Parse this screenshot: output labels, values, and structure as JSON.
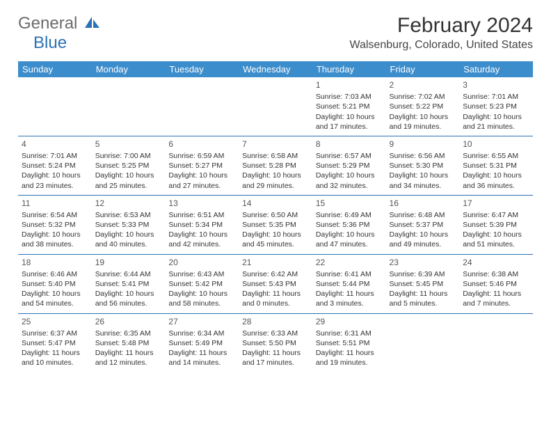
{
  "logo": {
    "general": "General",
    "blue": "Blue"
  },
  "title": "February 2024",
  "location": "Walsenburg, Colorado, United States",
  "colors": {
    "header_bg": "#3c8dcc",
    "header_text": "#ffffff",
    "row_border": "#2a72b5",
    "daynum_color": "#555555",
    "body_text": "#333333",
    "logo_gray": "#6b6b6b",
    "logo_blue": "#2a72b5"
  },
  "day_headers": [
    "Sunday",
    "Monday",
    "Tuesday",
    "Wednesday",
    "Thursday",
    "Friday",
    "Saturday"
  ],
  "layout": {
    "start_day_index": 4,
    "days_in_month": 29,
    "columns": 7,
    "rows": 5
  },
  "days": {
    "1": {
      "sunrise": "7:03 AM",
      "sunset": "5:21 PM",
      "daylight": "10 hours and 17 minutes."
    },
    "2": {
      "sunrise": "7:02 AM",
      "sunset": "5:22 PM",
      "daylight": "10 hours and 19 minutes."
    },
    "3": {
      "sunrise": "7:01 AM",
      "sunset": "5:23 PM",
      "daylight": "10 hours and 21 minutes."
    },
    "4": {
      "sunrise": "7:01 AM",
      "sunset": "5:24 PM",
      "daylight": "10 hours and 23 minutes."
    },
    "5": {
      "sunrise": "7:00 AM",
      "sunset": "5:25 PM",
      "daylight": "10 hours and 25 minutes."
    },
    "6": {
      "sunrise": "6:59 AM",
      "sunset": "5:27 PM",
      "daylight": "10 hours and 27 minutes."
    },
    "7": {
      "sunrise": "6:58 AM",
      "sunset": "5:28 PM",
      "daylight": "10 hours and 29 minutes."
    },
    "8": {
      "sunrise": "6:57 AM",
      "sunset": "5:29 PM",
      "daylight": "10 hours and 32 minutes."
    },
    "9": {
      "sunrise": "6:56 AM",
      "sunset": "5:30 PM",
      "daylight": "10 hours and 34 minutes."
    },
    "10": {
      "sunrise": "6:55 AM",
      "sunset": "5:31 PM",
      "daylight": "10 hours and 36 minutes."
    },
    "11": {
      "sunrise": "6:54 AM",
      "sunset": "5:32 PM",
      "daylight": "10 hours and 38 minutes."
    },
    "12": {
      "sunrise": "6:53 AM",
      "sunset": "5:33 PM",
      "daylight": "10 hours and 40 minutes."
    },
    "13": {
      "sunrise": "6:51 AM",
      "sunset": "5:34 PM",
      "daylight": "10 hours and 42 minutes."
    },
    "14": {
      "sunrise": "6:50 AM",
      "sunset": "5:35 PM",
      "daylight": "10 hours and 45 minutes."
    },
    "15": {
      "sunrise": "6:49 AM",
      "sunset": "5:36 PM",
      "daylight": "10 hours and 47 minutes."
    },
    "16": {
      "sunrise": "6:48 AM",
      "sunset": "5:37 PM",
      "daylight": "10 hours and 49 minutes."
    },
    "17": {
      "sunrise": "6:47 AM",
      "sunset": "5:39 PM",
      "daylight": "10 hours and 51 minutes."
    },
    "18": {
      "sunrise": "6:46 AM",
      "sunset": "5:40 PM",
      "daylight": "10 hours and 54 minutes."
    },
    "19": {
      "sunrise": "6:44 AM",
      "sunset": "5:41 PM",
      "daylight": "10 hours and 56 minutes."
    },
    "20": {
      "sunrise": "6:43 AM",
      "sunset": "5:42 PM",
      "daylight": "10 hours and 58 minutes."
    },
    "21": {
      "sunrise": "6:42 AM",
      "sunset": "5:43 PM",
      "daylight": "11 hours and 0 minutes."
    },
    "22": {
      "sunrise": "6:41 AM",
      "sunset": "5:44 PM",
      "daylight": "11 hours and 3 minutes."
    },
    "23": {
      "sunrise": "6:39 AM",
      "sunset": "5:45 PM",
      "daylight": "11 hours and 5 minutes."
    },
    "24": {
      "sunrise": "6:38 AM",
      "sunset": "5:46 PM",
      "daylight": "11 hours and 7 minutes."
    },
    "25": {
      "sunrise": "6:37 AM",
      "sunset": "5:47 PM",
      "daylight": "11 hours and 10 minutes."
    },
    "26": {
      "sunrise": "6:35 AM",
      "sunset": "5:48 PM",
      "daylight": "11 hours and 12 minutes."
    },
    "27": {
      "sunrise": "6:34 AM",
      "sunset": "5:49 PM",
      "daylight": "11 hours and 14 minutes."
    },
    "28": {
      "sunrise": "6:33 AM",
      "sunset": "5:50 PM",
      "daylight": "11 hours and 17 minutes."
    },
    "29": {
      "sunrise": "6:31 AM",
      "sunset": "5:51 PM",
      "daylight": "11 hours and 19 minutes."
    }
  },
  "labels": {
    "sunrise_prefix": "Sunrise: ",
    "sunset_prefix": "Sunset: ",
    "daylight_prefix": "Daylight: "
  }
}
